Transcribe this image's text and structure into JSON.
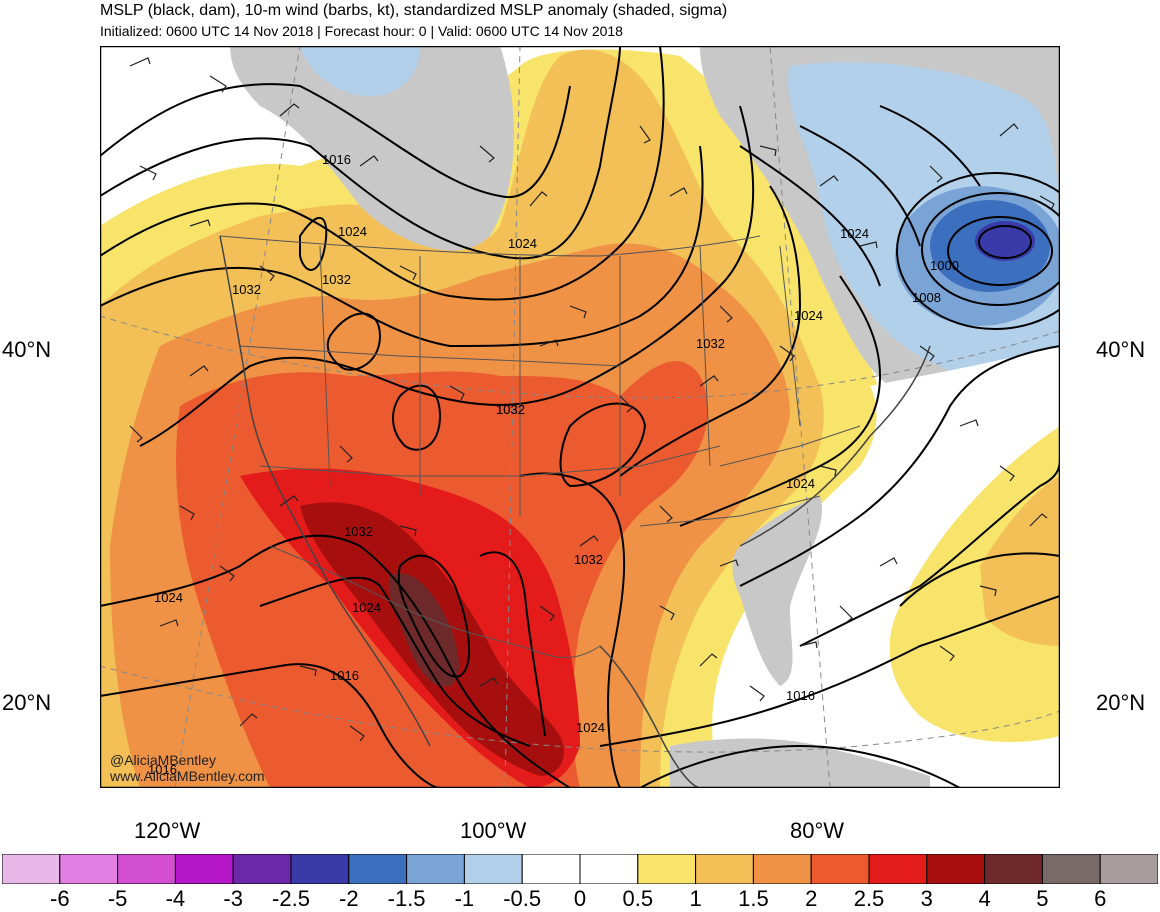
{
  "header": {
    "title": "MSLP (black, dam), 10-m wind (barbs, kt), standardized MSLP anomaly (shaded, sigma)",
    "subtitle": "Initialized: 0600 UTC 14 Nov 2018 | Forecast hour: 0 | Valid: 0600 UTC 14 Nov 2018"
  },
  "axes": {
    "lat_labels": [
      "40°N",
      "20°N"
    ],
    "lon_labels": [
      "120°W",
      "100°W",
      "80°W"
    ]
  },
  "isobar_labels": [
    "1016",
    "1024",
    "1032",
    "1032",
    "1024",
    "1032",
    "1032",
    "1032",
    "1024",
    "1024",
    "1032",
    "1016",
    "1000",
    "1008",
    "1024",
    "1024",
    "1032",
    "1024",
    "1016",
    "1024",
    "1016"
  ],
  "credit": {
    "handle": "@AliciaMBentley",
    "website": "www.AliciaMBentley.com"
  },
  "colorbar": {
    "labels": [
      "-6",
      "-5",
      "-4",
      "-3",
      "-2.5",
      "-2",
      "-1.5",
      "-1",
      "-0.5",
      "0",
      "0.5",
      "1",
      "1.5",
      "2",
      "2.5",
      "3",
      "4",
      "5",
      "6"
    ],
    "colors": [
      "#e8b8e8",
      "#e37ee3",
      "#d24fd2",
      "#b317c7",
      "#6b28a8",
      "#3a3aa8",
      "#3d6fbf",
      "#7aa3d6",
      "#b2d0ea",
      "#ffffff",
      "#ffffff",
      "#f8e46a",
      "#f2c057",
      "#ef9246",
      "#ec5a2f",
      "#e31b1b",
      "#a70f0f",
      "#6e2a2a",
      "#786a68",
      "#a89c9c"
    ]
  },
  "colors": {
    "land_gray": "#c8c8c8",
    "isobar": "#000000",
    "border": "#555555"
  }
}
